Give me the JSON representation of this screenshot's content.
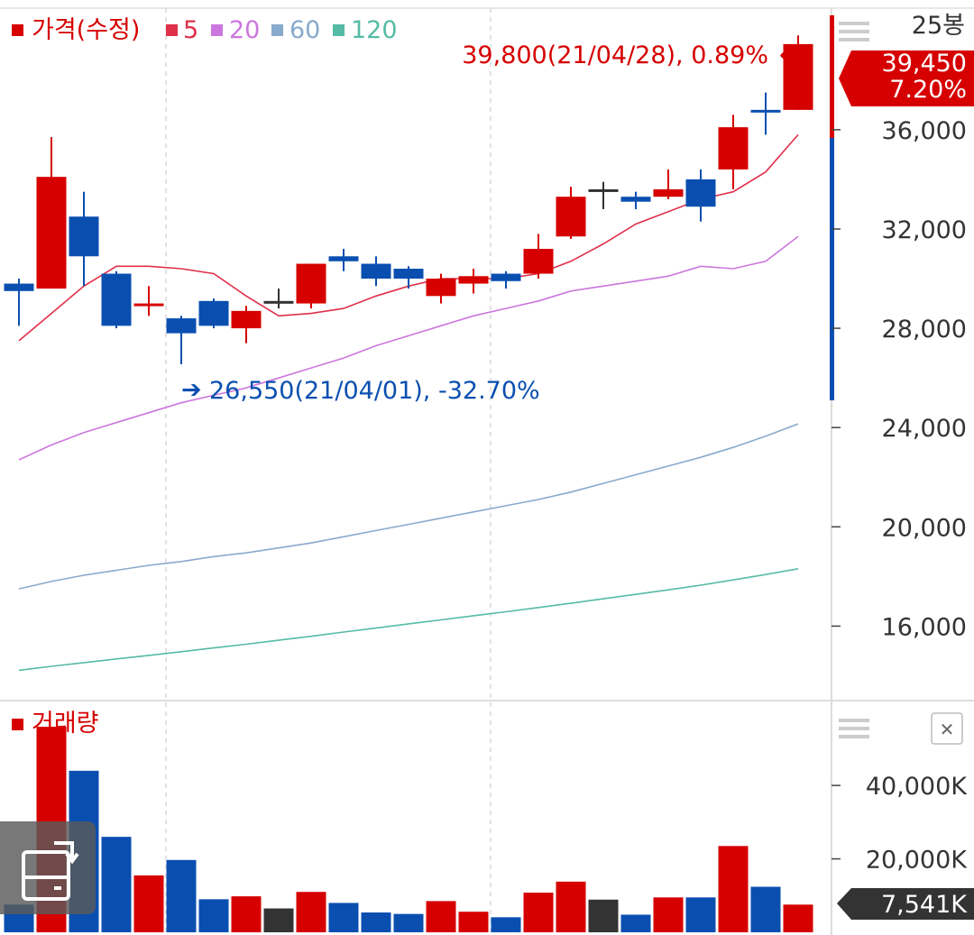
{
  "colors": {
    "up": "#d60000",
    "down": "#0a4fb0",
    "flat": "#333333",
    "ma5": "#e0304a",
    "ma20": "#cc77dd",
    "ma60": "#88aacc",
    "ma120": "#55bba5",
    "grid": "#d8d8d8",
    "price_tag": "#d60000",
    "volume_tag": "#333333"
  },
  "legend": {
    "price": "가격(수정)",
    "ma5": "5",
    "ma20": "20",
    "ma60": "60",
    "ma120": "120",
    "volume": "거래량"
  },
  "period_label": "25봉",
  "icons": {
    "price_menu": "menu-icon",
    "volume_menu": "menu-icon",
    "volume_close": "close-icon",
    "rotate": "rotate-screen-icon"
  },
  "close_icon_glyph": "✕",
  "annotations": {
    "high": "39,800(21/04/28), 0.89%",
    "high_arrow": "←",
    "low": "26,550(21/04/01), -32.70%",
    "low_arrow": "➔"
  },
  "price_tag": {
    "price": "39,450",
    "change": "7.20%"
  },
  "volume_tag": "7,541K",
  "chart_data": [
    {
      "type": "candlestick",
      "title": "가격(수정)",
      "y_ticks": [
        "36,000",
        "32,000",
        "28,000",
        "24,000",
        "20,000",
        "16,000"
      ],
      "ylim": [
        13000,
        40900
      ],
      "candles": [
        {
          "o": 29800,
          "h": 30000,
          "l": 28100,
          "c": 29500,
          "dir": "down"
        },
        {
          "o": 29600,
          "h": 35700,
          "l": 29600,
          "c": 34100,
          "dir": "up"
        },
        {
          "o": 32500,
          "h": 33500,
          "l": 29700,
          "c": 30900,
          "dir": "down"
        },
        {
          "o": 30200,
          "h": 30300,
          "l": 28000,
          "c": 28100,
          "dir": "down"
        },
        {
          "o": 29000,
          "h": 29700,
          "l": 28500,
          "c": 29000,
          "dir": "up"
        },
        {
          "o": 28400,
          "h": 28500,
          "l": 26550,
          "c": 27800,
          "dir": "down"
        },
        {
          "o": 29100,
          "h": 29200,
          "l": 28000,
          "c": 28100,
          "dir": "down"
        },
        {
          "o": 28000,
          "h": 28900,
          "l": 27400,
          "c": 28700,
          "dir": "up"
        },
        {
          "o": 29100,
          "h": 29600,
          "l": 28800,
          "c": 29100,
          "dir": "flat"
        },
        {
          "o": 29000,
          "h": 30600,
          "l": 28800,
          "c": 30600,
          "dir": "up"
        },
        {
          "o": 30900,
          "h": 31200,
          "l": 30300,
          "c": 30700,
          "dir": "down"
        },
        {
          "o": 30600,
          "h": 30900,
          "l": 29700,
          "c": 30000,
          "dir": "down"
        },
        {
          "o": 30400,
          "h": 30500,
          "l": 29600,
          "c": 30000,
          "dir": "down"
        },
        {
          "o": 29300,
          "h": 30200,
          "l": 29000,
          "c": 30000,
          "dir": "up"
        },
        {
          "o": 29800,
          "h": 30400,
          "l": 29400,
          "c": 30100,
          "dir": "up"
        },
        {
          "o": 30200,
          "h": 30300,
          "l": 29600,
          "c": 29900,
          "dir": "down"
        },
        {
          "o": 30200,
          "h": 31800,
          "l": 30000,
          "c": 31200,
          "dir": "up"
        },
        {
          "o": 31700,
          "h": 33700,
          "l": 31600,
          "c": 33300,
          "dir": "up"
        },
        {
          "o": 33600,
          "h": 33900,
          "l": 32800,
          "c": 33600,
          "dir": "flat"
        },
        {
          "o": 33300,
          "h": 33500,
          "l": 32800,
          "c": 33100,
          "dir": "down"
        },
        {
          "o": 33300,
          "h": 34400,
          "l": 33200,
          "c": 33600,
          "dir": "up"
        },
        {
          "o": 34000,
          "h": 34400,
          "l": 32300,
          "c": 32900,
          "dir": "down"
        },
        {
          "o": 34400,
          "h": 36600,
          "l": 33600,
          "c": 36100,
          "dir": "up"
        },
        {
          "o": 36800,
          "h": 37500,
          "l": 35800,
          "c": 36700,
          "dir": "down"
        },
        {
          "o": 36800,
          "h": 39800,
          "l": 36800,
          "c": 39450,
          "dir": "up"
        }
      ],
      "series": [
        {
          "name": "5",
          "values": [
            27500,
            28600,
            29700,
            30500,
            30500,
            30400,
            30200,
            29300,
            28500,
            28600,
            28800,
            29300,
            29700,
            30000,
            30000,
            30000,
            30200,
            30700,
            31400,
            32200,
            32700,
            33200,
            33500,
            34300,
            35800
          ]
        },
        {
          "name": "20",
          "values": [
            22700,
            23300,
            23800,
            24200,
            24600,
            25000,
            25300,
            25600,
            26000,
            26400,
            26800,
            27300,
            27700,
            28100,
            28500,
            28800,
            29100,
            29500,
            29700,
            29900,
            30100,
            30500,
            30400,
            30700,
            31700
          ]
        },
        {
          "name": "60",
          "values": [
            17500,
            17800,
            18050,
            18250,
            18450,
            18600,
            18800,
            18950,
            19150,
            19350,
            19600,
            19850,
            20100,
            20350,
            20600,
            20850,
            21100,
            21400,
            21750,
            22100,
            22450,
            22800,
            23200,
            23650,
            24150
          ]
        },
        {
          "name": "120",
          "values": [
            14220,
            14380,
            14530,
            14680,
            14820,
            14970,
            15120,
            15270,
            15430,
            15590,
            15760,
            15920,
            16090,
            16250,
            16420,
            16580,
            16750,
            16920,
            17100,
            17280,
            17460,
            17650,
            17860,
            18080,
            18310
          ]
        }
      ]
    },
    {
      "type": "bar",
      "title": "거래량",
      "y_ticks": [
        "40,000K",
        "20,000K"
      ],
      "unit": "K",
      "ylim": [
        0,
        61400
      ],
      "values": [
        7541,
        56000,
        44000,
        26000,
        15500,
        19700,
        9000,
        9800,
        6500,
        11000,
        8000,
        5400,
        5000,
        8500,
        5600,
        4100,
        10800,
        13800,
        8900,
        4800,
        9500,
        9500,
        23500,
        12400,
        7541
      ],
      "dirs": [
        "down",
        "up",
        "down",
        "down",
        "up",
        "down",
        "down",
        "up",
        "flat",
        "up",
        "down",
        "down",
        "down",
        "up",
        "up",
        "down",
        "up",
        "up",
        "flat",
        "down",
        "up",
        "down",
        "up",
        "down",
        "up"
      ]
    }
  ]
}
